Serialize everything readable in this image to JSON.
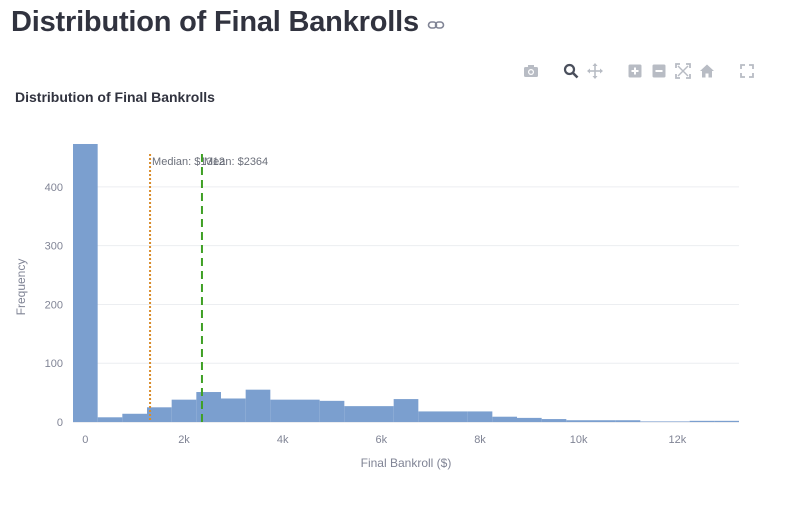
{
  "page": {
    "heading": "Distribution of Final Bankrolls",
    "heading_link_icon": "link-icon"
  },
  "modebar": {
    "buttons": [
      {
        "name": "camera-icon",
        "label": "Download plot as a png"
      },
      {
        "name": "zoom-icon",
        "label": "Zoom",
        "active": true
      },
      {
        "name": "pan-icon",
        "label": "Pan"
      },
      {
        "name": "zoom-in-icon",
        "label": "Zoom in"
      },
      {
        "name": "zoom-out-icon",
        "label": "Zoom out"
      },
      {
        "name": "autoscale-icon",
        "label": "Autoscale"
      },
      {
        "name": "reset-axes-icon",
        "label": "Reset axes"
      },
      {
        "name": "fullscreen-icon",
        "label": "Fullscreen"
      }
    ]
  },
  "chart_data": {
    "type": "bar",
    "title": "Distribution of Final Bankrolls",
    "xlabel": "Final Bankroll ($)",
    "ylabel": "Frequency",
    "xlim": [
      -250,
      13250
    ],
    "ylim": [
      0,
      490
    ],
    "grid": true,
    "bar_color": "#7b9fcf",
    "x_ticks": [
      {
        "value": 0,
        "label": "0"
      },
      {
        "value": 2000,
        "label": "2k"
      },
      {
        "value": 4000,
        "label": "4k"
      },
      {
        "value": 6000,
        "label": "6k"
      },
      {
        "value": 8000,
        "label": "8k"
      },
      {
        "value": 10000,
        "label": "10k"
      },
      {
        "value": 12000,
        "label": "12k"
      }
    ],
    "y_ticks": [
      {
        "value": 0,
        "label": "0"
      },
      {
        "value": 100,
        "label": "100"
      },
      {
        "value": 200,
        "label": "200"
      },
      {
        "value": 300,
        "label": "300"
      },
      {
        "value": 400,
        "label": "400"
      }
    ],
    "bin_width": 500,
    "bins": [
      {
        "start": -250,
        "count": 473
      },
      {
        "start": 250,
        "count": 8
      },
      {
        "start": 750,
        "count": 14
      },
      {
        "start": 1250,
        "count": 25
      },
      {
        "start": 1750,
        "count": 38
      },
      {
        "start": 2250,
        "count": 51
      },
      {
        "start": 2750,
        "count": 40
      },
      {
        "start": 3250,
        "count": 55
      },
      {
        "start": 3750,
        "count": 38
      },
      {
        "start": 4250,
        "count": 38
      },
      {
        "start": 4750,
        "count": 36
      },
      {
        "start": 5250,
        "count": 27
      },
      {
        "start": 5750,
        "count": 27
      },
      {
        "start": 6250,
        "count": 39
      },
      {
        "start": 6750,
        "count": 18
      },
      {
        "start": 7250,
        "count": 18
      },
      {
        "start": 7750,
        "count": 18
      },
      {
        "start": 8250,
        "count": 9
      },
      {
        "start": 8750,
        "count": 7
      },
      {
        "start": 9250,
        "count": 5
      },
      {
        "start": 9750,
        "count": 3
      },
      {
        "start": 10250,
        "count": 3
      },
      {
        "start": 10750,
        "count": 3
      },
      {
        "start": 11250,
        "count": 1
      },
      {
        "start": 11750,
        "count": 1
      },
      {
        "start": 12250,
        "count": 2
      },
      {
        "start": 12750,
        "count": 2
      }
    ],
    "lines": [
      {
        "name": "median",
        "label": "Median: $1312",
        "x": 1312,
        "color": "#d98c2b",
        "dash": "dot"
      },
      {
        "name": "mean",
        "label": "Mean: $2364",
        "x": 2364,
        "color": "#3fa024",
        "dash": "dash"
      }
    ]
  }
}
